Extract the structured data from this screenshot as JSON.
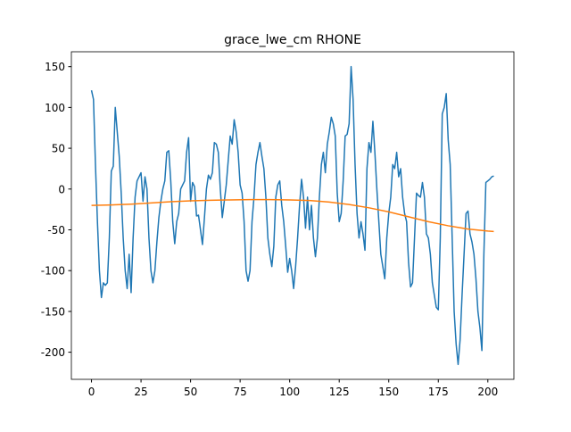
{
  "chart_data": {
    "type": "line",
    "title": "grace_lwe_cm RHONE",
    "xlim": [
      -10.15,
      213.15
    ],
    "xticks": [
      0,
      25,
      50,
      75,
      100,
      125,
      150,
      175,
      200
    ],
    "ylim": [
      -233.25,
      168.25
    ],
    "yticks": [
      -200,
      -150,
      -100,
      -50,
      0,
      50,
      100,
      150
    ],
    "series": [
      {
        "color": "#1f77b4",
        "x": [
          0,
          1,
          2,
          3,
          4,
          5,
          6,
          7,
          8,
          9,
          10,
          11,
          12,
          13,
          14,
          15,
          16,
          17,
          18,
          19,
          20,
          21,
          22,
          23,
          24,
          25,
          26,
          27,
          28,
          29,
          30,
          31,
          32,
          33,
          34,
          35,
          36,
          37,
          38,
          39,
          40,
          41,
          42,
          43,
          44,
          45,
          46,
          47,
          48,
          49,
          50,
          51,
          52,
          53,
          54,
          55,
          56,
          57,
          58,
          59,
          60,
          61,
          62,
          63,
          64,
          65,
          66,
          67,
          68,
          69,
          70,
          71,
          72,
          73,
          74,
          75,
          76,
          77,
          78,
          79,
          80,
          81,
          82,
          83,
          84,
          85,
          86,
          87,
          88,
          89,
          90,
          91,
          92,
          93,
          94,
          95,
          96,
          97,
          98,
          99,
          100,
          101,
          102,
          103,
          104,
          105,
          106,
          107,
          108,
          109,
          110,
          111,
          112,
          113,
          114,
          115,
          116,
          117,
          118,
          119,
          120,
          121,
          122,
          123,
          124,
          125,
          126,
          127,
          128,
          129,
          130,
          131,
          132,
          133,
          134,
          135,
          136,
          137,
          138,
          139,
          140,
          141,
          142,
          143,
          144,
          145,
          146,
          147,
          148,
          149,
          150,
          151,
          152,
          153,
          154,
          155,
          156,
          157,
          158,
          159,
          160,
          161,
          162,
          163,
          164,
          165,
          166,
          167,
          168,
          169,
          170,
          171,
          172,
          173,
          174,
          175,
          176,
          177,
          178,
          179,
          180,
          181,
          182,
          183,
          184,
          185,
          186,
          187,
          188,
          189,
          190,
          191,
          192,
          193,
          194,
          195,
          196,
          197,
          198,
          199,
          200,
          201,
          202,
          203
        ],
        "values": [
          121,
          110,
          30,
          -40,
          -100,
          -133,
          -115,
          -118,
          -115,
          -60,
          22,
          28,
          100,
          70,
          40,
          -5,
          -60,
          -100,
          -122,
          -80,
          -127,
          -60,
          -10,
          10,
          15,
          20,
          -15,
          15,
          0,
          -60,
          -100,
          -115,
          -100,
          -65,
          -35,
          -15,
          0,
          10,
          45,
          47,
          10,
          -40,
          -67,
          -40,
          -30,
          0,
          5,
          10,
          45,
          63,
          -15,
          8,
          3,
          -33,
          -32,
          -50,
          -68,
          -35,
          0,
          17,
          12,
          20,
          57,
          55,
          45,
          0,
          -35,
          -15,
          5,
          35,
          65,
          55,
          85,
          70,
          45,
          5,
          -5,
          -40,
          -100,
          -113,
          -100,
          -40,
          -10,
          30,
          45,
          57,
          40,
          25,
          -10,
          -60,
          -80,
          -95,
          -70,
          -10,
          5,
          10,
          -20,
          -40,
          -70,
          -102,
          -85,
          -100,
          -122,
          -95,
          -60,
          -20,
          12,
          -10,
          -48,
          -10,
          -50,
          -20,
          -60,
          -83,
          -60,
          -10,
          30,
          45,
          20,
          55,
          70,
          88,
          80,
          65,
          -5,
          -40,
          -30,
          10,
          65,
          67,
          80,
          150,
          110,
          30,
          -30,
          -60,
          -40,
          -55,
          -75,
          25,
          57,
          45,
          83,
          45,
          0,
          -40,
          -80,
          -95,
          -110,
          -60,
          -30,
          -10,
          30,
          25,
          45,
          15,
          25,
          -10,
          -30,
          -40,
          -90,
          -120,
          -115,
          -60,
          -5,
          -8,
          -10,
          8,
          -10,
          -55,
          -60,
          -80,
          -115,
          -130,
          -145,
          -148,
          -60,
          92,
          100,
          117,
          60,
          30,
          -60,
          -150,
          -190,
          -215,
          -185,
          -130,
          -80,
          -30,
          -27,
          -55,
          -65,
          -80,
          -110,
          -150,
          -170,
          -198,
          -80,
          8,
          10,
          12,
          15,
          16
        ]
      },
      {
        "color": "#ff7f0e",
        "x": [
          0,
          10,
          20,
          30,
          40,
          50,
          60,
          70,
          80,
          90,
          100,
          110,
          120,
          130,
          140,
          150,
          160,
          170,
          180,
          190,
          200,
          203
        ],
        "values": [
          -20,
          -19.5,
          -18.5,
          -17,
          -15.5,
          -14.5,
          -13.8,
          -13.3,
          -13,
          -13,
          -13.3,
          -14,
          -16,
          -19,
          -23,
          -28,
          -34,
          -40,
          -45,
          -49,
          -51.5,
          -52
        ]
      }
    ]
  }
}
